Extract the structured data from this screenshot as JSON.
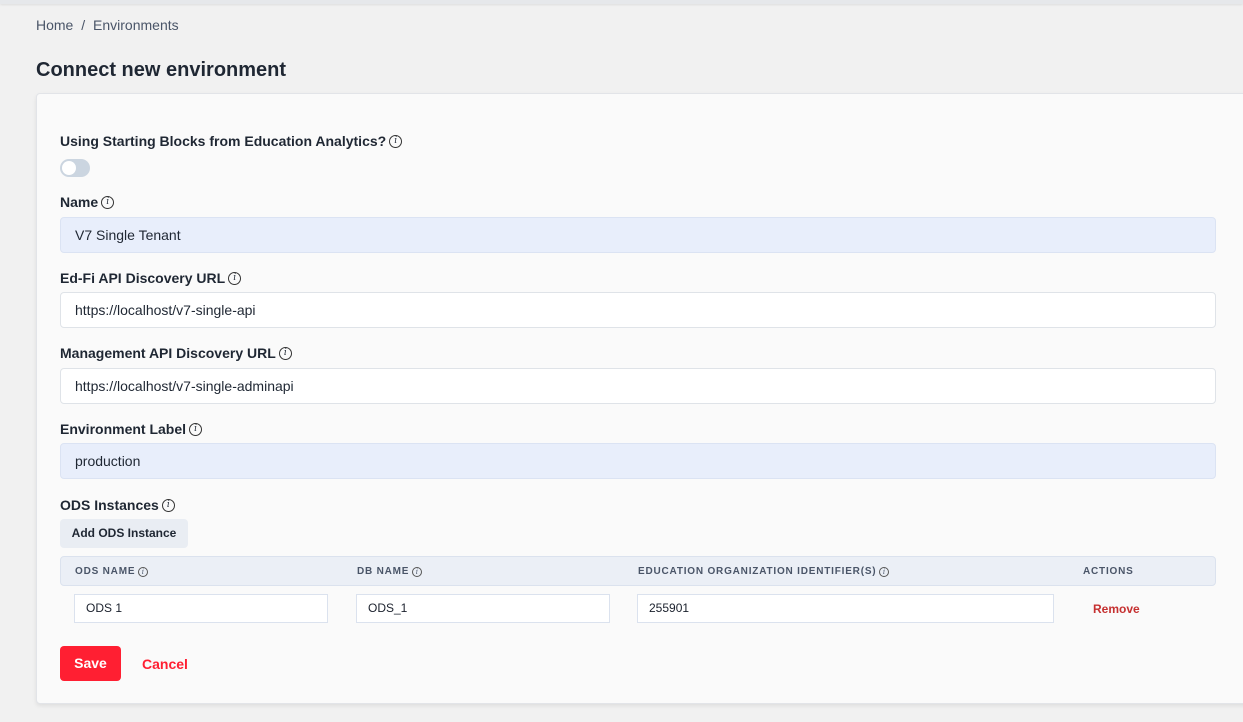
{
  "breadcrumb": {
    "home": "Home",
    "separator": "/",
    "current": "Environments"
  },
  "page_title": "Connect new environment",
  "form": {
    "starting_blocks": {
      "label": "Using Starting Blocks from Education Analytics?",
      "enabled": false
    },
    "name": {
      "label": "Name",
      "value": "V7 Single Tenant"
    },
    "edfi_url": {
      "label": "Ed-Fi API Discovery URL",
      "value": "https://localhost/v7-single-api"
    },
    "mgmt_url": {
      "label": "Management API Discovery URL",
      "value": "https://localhost/v7-single-adminapi"
    },
    "env_label": {
      "label": "Environment Label",
      "value": "production"
    },
    "ods": {
      "label": "ODS Instances",
      "add_label": "Add ODS Instance",
      "columns": [
        "ODS NAME",
        "DB NAME",
        "EDUCATION ORGANIZATION IDENTIFIER(S)",
        "ACTIONS"
      ],
      "rows": [
        {
          "ods_name": "ODS 1",
          "db_name": "ODS_1",
          "ed_org_ids": "255901",
          "action": "Remove"
        }
      ]
    },
    "save_label": "Save",
    "cancel_label": "Cancel"
  },
  "colors": {
    "primary": "#ff1f32",
    "remove": "#c53030"
  }
}
